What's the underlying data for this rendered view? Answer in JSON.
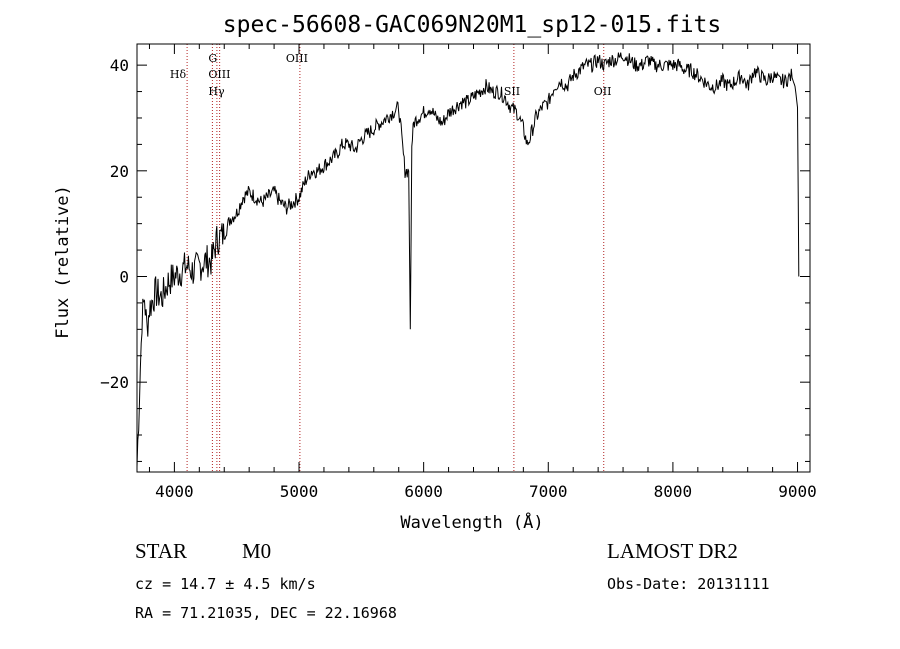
{
  "chart_data": {
    "type": "line",
    "title": "spec-56608-GAC069N20M1_sp12-015.fits",
    "xlabel": "Wavelength (Å)",
    "ylabel": "Flux (relative)",
    "xlim": [
      3700,
      9100
    ],
    "ylim": [
      -37,
      44
    ],
    "x_ticks": [
      4000,
      5000,
      6000,
      7000,
      8000,
      9000
    ],
    "x_tick_labels": [
      "4000",
      "5000",
      "6000",
      "7000",
      "8000",
      "9000"
    ],
    "y_ticks": [
      -20,
      0,
      20,
      40
    ],
    "y_tick_labels": [
      "−20",
      "0",
      "20",
      "40"
    ],
    "grid": false,
    "series": [
      {
        "x": [
          3700,
          3720,
          3740,
          3760,
          3780,
          3800,
          3850,
          3900,
          3950,
          4000,
          4050,
          4100,
          4150,
          4200,
          4250,
          4300,
          4340,
          4400,
          4450,
          4500,
          4550,
          4600,
          4650,
          4700,
          4750,
          4800,
          4850,
          4900,
          4950,
          5000,
          5050,
          5100,
          5150,
          5200,
          5250,
          5300,
          5350,
          5400,
          5450,
          5500,
          5550,
          5600,
          5650,
          5700,
          5750,
          5800,
          5850,
          5880,
          5893,
          5905,
          5920,
          5950,
          6000,
          6050,
          6100,
          6150,
          6200,
          6250,
          6300,
          6350,
          6400,
          6450,
          6500,
          6550,
          6600,
          6650,
          6700,
          6750,
          6800,
          6830,
          6850,
          6900,
          6950,
          7000,
          7050,
          7100,
          7150,
          7200,
          7250,
          7300,
          7350,
          7400,
          7450,
          7500,
          7550,
          7600,
          7650,
          7700,
          7750,
          7800,
          7850,
          7900,
          7950,
          8000,
          8050,
          8100,
          8150,
          8200,
          8250,
          8300,
          8350,
          8400,
          8450,
          8500,
          8550,
          8600,
          8650,
          8700,
          8750,
          8800,
          8850,
          8900,
          8950,
          8980,
          9000,
          9010
        ],
        "y": [
          -36,
          -22,
          -8,
          -4,
          -10,
          -6,
          -3,
          -4,
          -1,
          0,
          1,
          2,
          1,
          2,
          3,
          3,
          7,
          8,
          11,
          12,
          15,
          16,
          15,
          14,
          15,
          16,
          14,
          13,
          14,
          15,
          18,
          20,
          20,
          21,
          22,
          23,
          25,
          25,
          24,
          26,
          27,
          28,
          29,
          30,
          31,
          32,
          20,
          20,
          -10,
          25,
          29,
          30,
          31,
          32,
          30,
          29,
          31,
          32,
          33,
          33,
          34,
          35,
          36,
          35,
          35,
          34,
          32,
          31,
          28,
          25,
          26,
          30,
          32,
          33,
          36,
          37,
          36,
          38,
          39,
          40,
          40,
          41,
          40,
          41,
          41,
          42,
          41,
          40,
          40,
          41,
          40,
          40,
          40,
          40,
          40,
          39,
          39,
          38,
          37,
          36,
          36,
          37,
          36,
          37,
          38,
          36,
          39,
          38,
          37,
          38,
          37,
          37,
          38,
          36,
          32,
          0
        ]
      }
    ],
    "lines": [
      {
        "label": "Hδ",
        "x": 4102
      },
      {
        "label": "G",
        "x": 4305
      },
      {
        "label": "OIII",
        "x": 4363
      },
      {
        "label": "Hγ",
        "x": 4341
      },
      {
        "label": "OIII",
        "x": 5007
      },
      {
        "label": "SII",
        "x": 6724
      },
      {
        "label": "OII",
        "x": 7445
      }
    ]
  },
  "info": {
    "class_label": "STAR",
    "subclass_label": "M0",
    "survey": "LAMOST DR2",
    "cz": "cz = 14.7 ± 4.5 km/s",
    "obs_date": "Obs-Date: 20131111",
    "coords": "RA =  71.21035, DEC =  22.16968"
  },
  "colors": {
    "axis": "#000000",
    "line": "#000000",
    "marker_line": "#b22222"
  }
}
